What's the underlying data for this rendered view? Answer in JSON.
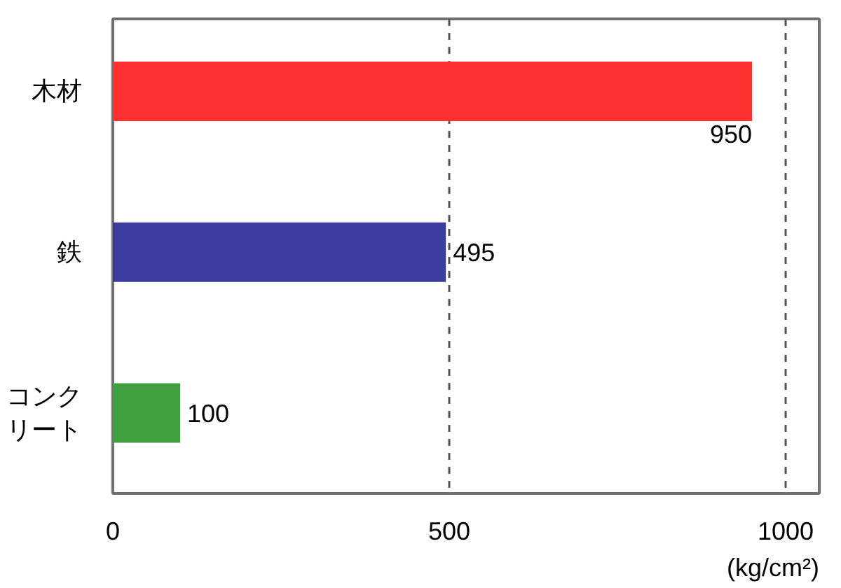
{
  "chart_data": {
    "type": "bar",
    "orientation": "horizontal",
    "categories": [
      "木材",
      "鉄",
      "コンクリート"
    ],
    "values": [
      950,
      495,
      100
    ],
    "colors": [
      "#ff3030",
      "#3c3ca0",
      "#40a040"
    ],
    "xlim": [
      0,
      1050
    ],
    "xticks": [
      0,
      500,
      1000
    ],
    "xlabel": "(kg/cm²)",
    "grid": "x",
    "data_labels": true
  }
}
